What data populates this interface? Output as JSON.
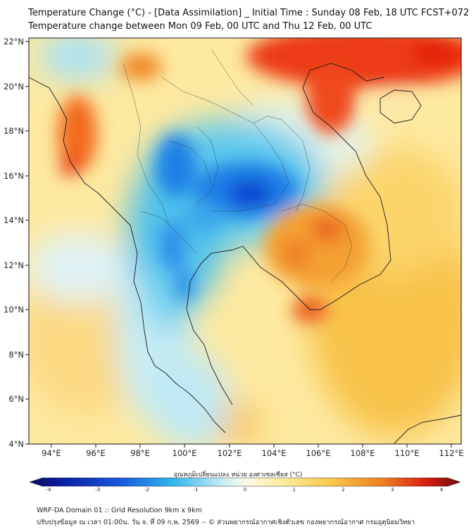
{
  "header": {
    "title_line1": "Temperature Change (°C) - [Data Assimilation] _ Initial Time : Sunday 08 Feb, 18 UTC FCST+072",
    "title_line2": "Temperature change between Mon 09 Feb, 00 UTC and Thu 12 Feb, 00 UTC"
  },
  "map": {
    "lat_labels": [
      "22°N",
      "20°N",
      "18°N",
      "16°N",
      "14°N",
      "12°N",
      "10°N",
      "8°N",
      "6°N",
      "4°N"
    ],
    "lon_labels": [
      "94°E",
      "96°E",
      "98°E",
      "100°E",
      "102°E",
      "104°E",
      "106°E",
      "108°E",
      "110°E",
      "112°E"
    ],
    "colors": {
      "strong_warm": "#e8250f",
      "warm": "#f5a623",
      "mild_warm": "#fde28a",
      "neutral": "#fdf6c8",
      "cool": "#7fd6f2",
      "cold": "#1a73e8",
      "very_cold": "#0b3fd0"
    }
  },
  "colorbar": {
    "label": "อุณหภูมิเปลี่ยนแปลง หน่วย องศาเซลเซียส (°C)",
    "ticks": [
      "-4",
      "-3",
      "-2",
      "-1",
      "0",
      "1",
      "2",
      "3",
      "4"
    ]
  },
  "footer": {
    "line1": "WRF-DA Domain 01 :: Grid Resolution 9km x 9km",
    "line2": "ปรับปรุงข้อมูล ณ เวลา 01:00น. วัน จ. ที่ 09 ก.พ. 2569 -- © ส่วนพยากรณ์อากาศเชิงตัวเลข กองพยากรณ์อากาศ กรมอุตุนิยมวิทยา"
  }
}
